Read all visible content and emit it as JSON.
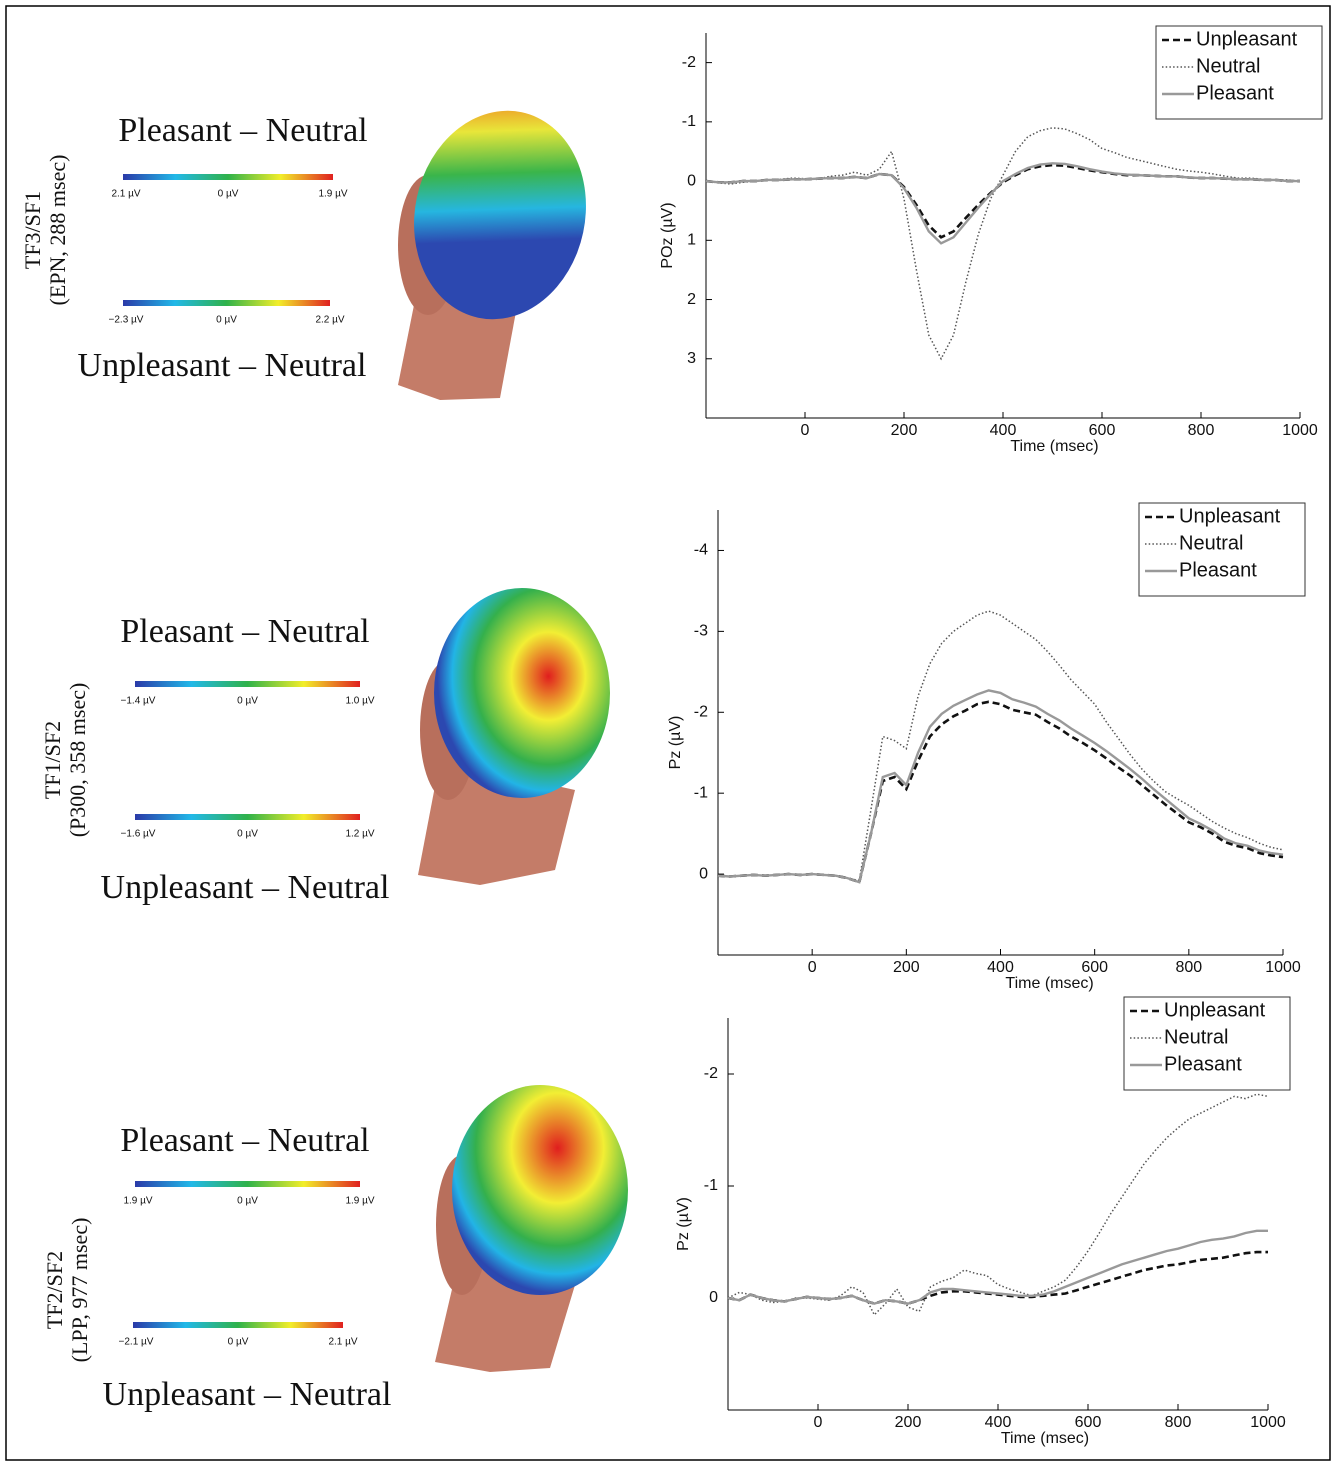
{
  "panels": [
    {
      "row_label": "TF3/SF1",
      "row_sublabel": "(EPN, 288 msec)",
      "pleasant": {
        "title": "Pleasant – Neutral",
        "scale": [
          "2.1 µV",
          "0 µV",
          "1.9 µV"
        ]
      },
      "unpleasant": {
        "title": "Unpleasant – Neutral",
        "scale": [
          "−2.3 µV",
          "0 µV",
          "2.2 µV"
        ]
      }
    },
    {
      "row_label": "TF1/SF2",
      "row_sublabel": "(P300, 358 msec)",
      "pleasant": {
        "title": "Pleasant – Neutral",
        "scale": [
          "−1.4 µV",
          "0 µV",
          "1.0 µV"
        ]
      },
      "unpleasant": {
        "title": "Unpleasant – Neutral",
        "scale": [
          "−1.6 µV",
          "0 µV",
          "1.2 µV"
        ]
      }
    },
    {
      "row_label": "TF2/SF2",
      "row_sublabel": "(LPP, 977 msec)",
      "pleasant": {
        "title": "Pleasant – Neutral",
        "scale": [
          "1.9 µV",
          "0 µV",
          "1.9 µV"
        ]
      },
      "unpleasant": {
        "title": "Unpleasant – Neutral",
        "scale": [
          "−2.1 µV",
          "0 µV",
          "2.1 µV"
        ]
      }
    }
  ],
  "chart_data": [
    {
      "type": "line",
      "xlabel": "Time (msec)",
      "ylabel": "POz (µV)",
      "legend": "upper right",
      "xlim": [
        -200,
        1000
      ],
      "xticks": [
        0,
        200,
        400,
        600,
        800,
        1000
      ],
      "ylim": [
        4,
        -2.5
      ],
      "yticks": [
        -2,
        -1,
        0,
        1,
        2,
        3
      ],
      "x": [
        -200,
        -175,
        -150,
        -125,
        -100,
        -75,
        -50,
        -25,
        0,
        25,
        50,
        75,
        100,
        125,
        150,
        175,
        200,
        225,
        250,
        275,
        300,
        325,
        350,
        375,
        400,
        425,
        450,
        475,
        500,
        525,
        550,
        575,
        600,
        625,
        650,
        675,
        700,
        725,
        750,
        775,
        800,
        825,
        850,
        875,
        900,
        925,
        950,
        975,
        1000
      ],
      "series": [
        {
          "name": "Unpleasant",
          "color": "#111111",
          "line_style": "dashed",
          "values": [
            0,
            0.02,
            0.02,
            0,
            0,
            -0.02,
            -0.02,
            -0.03,
            -0.03,
            -0.04,
            -0.05,
            -0.05,
            -0.07,
            -0.05,
            -0.12,
            -0.1,
            0.1,
            0.4,
            0.75,
            0.95,
            0.85,
            0.62,
            0.4,
            0.2,
            0.02,
            -0.1,
            -0.2,
            -0.25,
            -0.27,
            -0.26,
            -0.22,
            -0.18,
            -0.15,
            -0.12,
            -0.1,
            -0.1,
            -0.09,
            -0.08,
            -0.08,
            -0.06,
            -0.05,
            -0.05,
            -0.04,
            -0.03,
            -0.03,
            -0.02,
            -0.02,
            0,
            0
          ]
        },
        {
          "name": "Neutral",
          "color": "#555555",
          "line_style": "dotted",
          "values": [
            0,
            0.03,
            0.05,
            0.02,
            0,
            -0.02,
            -0.03,
            -0.05,
            -0.04,
            -0.03,
            -0.08,
            -0.1,
            -0.15,
            -0.1,
            -0.2,
            -0.5,
            0.3,
            1.5,
            2.6,
            3.0,
            2.6,
            1.7,
            0.9,
            0.3,
            -0.1,
            -0.5,
            -0.75,
            -0.85,
            -0.9,
            -0.88,
            -0.8,
            -0.7,
            -0.55,
            -0.48,
            -0.4,
            -0.35,
            -0.3,
            -0.25,
            -0.2,
            -0.17,
            -0.15,
            -0.12,
            -0.08,
            -0.05,
            -0.05,
            -0.03,
            -0.02,
            -0.02,
            0
          ]
        },
        {
          "name": "Pleasant",
          "color": "#999999",
          "line_style": "solid",
          "values": [
            0,
            0.02,
            0.02,
            0,
            0,
            -0.02,
            -0.02,
            -0.03,
            -0.03,
            -0.04,
            -0.05,
            -0.05,
            -0.07,
            -0.05,
            -0.12,
            -0.1,
            0.12,
            0.45,
            0.85,
            1.05,
            0.95,
            0.7,
            0.45,
            0.22,
            0,
            -0.12,
            -0.22,
            -0.28,
            -0.3,
            -0.29,
            -0.25,
            -0.2,
            -0.16,
            -0.13,
            -0.11,
            -0.1,
            -0.09,
            -0.08,
            -0.08,
            -0.06,
            -0.05,
            -0.05,
            -0.04,
            -0.03,
            -0.03,
            -0.02,
            -0.02,
            0,
            0
          ]
        }
      ]
    },
    {
      "type": "line",
      "xlabel": "Time (msec)",
      "ylabel": "Pz (µV)",
      "legend": "upper right",
      "xlim": [
        -200,
        1000
      ],
      "xticks": [
        0,
        200,
        400,
        600,
        800,
        1000
      ],
      "ylim": [
        1,
        -4.5
      ],
      "yticks": [
        -4,
        -3,
        -2,
        -1,
        0
      ],
      "x": [
        -200,
        -175,
        -150,
        -125,
        -100,
        -75,
        -50,
        -25,
        0,
        25,
        50,
        75,
        100,
        125,
        150,
        175,
        200,
        225,
        250,
        275,
        300,
        325,
        350,
        375,
        400,
        425,
        450,
        475,
        500,
        525,
        550,
        575,
        600,
        625,
        650,
        675,
        700,
        725,
        750,
        775,
        800,
        825,
        850,
        875,
        900,
        925,
        950,
        975,
        1000
      ],
      "series": [
        {
          "name": "Unpleasant",
          "color": "#111111",
          "line_style": "dashed",
          "values": [
            0.02,
            0.03,
            0.02,
            0.01,
            0.02,
            0.01,
            0,
            0.01,
            0,
            0.01,
            0.02,
            0.05,
            0.1,
            -0.5,
            -1.15,
            -1.2,
            -1.05,
            -1.4,
            -1.7,
            -1.85,
            -1.95,
            -2.02,
            -2.1,
            -2.13,
            -2.1,
            -2.03,
            -2.0,
            -1.97,
            -1.88,
            -1.8,
            -1.7,
            -1.62,
            -1.53,
            -1.43,
            -1.32,
            -1.22,
            -1.1,
            -0.98,
            -0.86,
            -0.75,
            -0.64,
            -0.58,
            -0.5,
            -0.4,
            -0.35,
            -0.32,
            -0.26,
            -0.23,
            -0.21
          ]
        },
        {
          "name": "Neutral",
          "color": "#555555",
          "line_style": "dotted",
          "values": [
            0.02,
            0.03,
            0.02,
            0.01,
            0.02,
            0.01,
            0,
            0.01,
            0,
            0.01,
            0.02,
            0.05,
            0.08,
            -0.8,
            -1.7,
            -1.65,
            -1.55,
            -2.2,
            -2.6,
            -2.85,
            -3.0,
            -3.1,
            -3.2,
            -3.25,
            -3.2,
            -3.1,
            -3.0,
            -2.9,
            -2.75,
            -2.58,
            -2.4,
            -2.25,
            -2.1,
            -1.88,
            -1.68,
            -1.48,
            -1.3,
            -1.15,
            -1.02,
            -0.93,
            -0.85,
            -0.75,
            -0.65,
            -0.57,
            -0.5,
            -0.45,
            -0.38,
            -0.33,
            -0.3
          ]
        },
        {
          "name": "Pleasant",
          "color": "#999999",
          "line_style": "solid",
          "values": [
            0.02,
            0.03,
            0.02,
            0.01,
            0.02,
            0.01,
            0,
            0.01,
            0,
            0.01,
            0.02,
            0.05,
            0.1,
            -0.5,
            -1.2,
            -1.25,
            -1.1,
            -1.5,
            -1.82,
            -1.98,
            -2.08,
            -2.15,
            -2.22,
            -2.27,
            -2.24,
            -2.16,
            -2.12,
            -2.07,
            -1.98,
            -1.9,
            -1.8,
            -1.71,
            -1.62,
            -1.52,
            -1.41,
            -1.3,
            -1.18,
            -1.05,
            -0.93,
            -0.81,
            -0.69,
            -0.62,
            -0.54,
            -0.44,
            -0.38,
            -0.35,
            -0.29,
            -0.26,
            -0.24
          ]
        }
      ]
    },
    {
      "type": "line",
      "xlabel": "Time (msec)",
      "ylabel": "Pz (µV)",
      "legend": "upper right",
      "xlim": [
        -200,
        1000
      ],
      "xticks": [
        0,
        200,
        400,
        600,
        800,
        1000
      ],
      "ylim": [
        1,
        -2.5
      ],
      "yticks": [
        -2,
        -1,
        0
      ],
      "x": [
        -200,
        -175,
        -150,
        -125,
        -100,
        -75,
        -50,
        -25,
        0,
        25,
        50,
        75,
        100,
        125,
        150,
        175,
        200,
        225,
        250,
        275,
        300,
        325,
        350,
        375,
        400,
        425,
        450,
        475,
        500,
        525,
        550,
        575,
        600,
        625,
        650,
        675,
        700,
        725,
        750,
        775,
        800,
        825,
        850,
        875,
        900,
        925,
        950,
        975,
        1000
      ],
      "series": [
        {
          "name": "Unpleasant",
          "color": "#111111",
          "line_style": "dashed",
          "values": [
            0,
            0.02,
            -0.03,
            0,
            0.02,
            0.03,
            0.01,
            -0.01,
            0,
            0.01,
            0,
            -0.02,
            0.02,
            0.05,
            0.02,
            0.03,
            0.05,
            0.02,
            -0.02,
            -0.05,
            -0.06,
            -0.06,
            -0.05,
            -0.04,
            -0.03,
            -0.02,
            -0.01,
            -0.01,
            -0.02,
            -0.03,
            -0.04,
            -0.07,
            -0.1,
            -0.13,
            -0.16,
            -0.19,
            -0.22,
            -0.25,
            -0.27,
            -0.29,
            -0.3,
            -0.32,
            -0.34,
            -0.35,
            -0.36,
            -0.38,
            -0.4,
            -0.41,
            -0.41
          ]
        },
        {
          "name": "Neutral",
          "color": "#555555",
          "line_style": "dotted",
          "values": [
            0,
            -0.05,
            -0.03,
            0.02,
            0.04,
            0.03,
            0,
            0,
            0.01,
            0.02,
            -0.02,
            -0.1,
            -0.05,
            0.15,
            0.05,
            -0.08,
            0.08,
            0.12,
            -0.1,
            -0.15,
            -0.18,
            -0.25,
            -0.22,
            -0.2,
            -0.12,
            -0.08,
            -0.05,
            -0.02,
            -0.06,
            -0.1,
            -0.16,
            -0.28,
            -0.42,
            -0.58,
            -0.75,
            -0.9,
            -1.05,
            -1.2,
            -1.32,
            -1.43,
            -1.52,
            -1.6,
            -1.65,
            -1.7,
            -1.75,
            -1.8,
            -1.78,
            -1.82,
            -1.8
          ]
        },
        {
          "name": "Pleasant",
          "color": "#999999",
          "line_style": "solid",
          "values": [
            0,
            0.02,
            -0.03,
            0,
            0.02,
            0.03,
            0.01,
            -0.01,
            0,
            0.01,
            0,
            -0.02,
            0.02,
            0.05,
            0.02,
            0.03,
            0.05,
            0.02,
            -0.05,
            -0.08,
            -0.08,
            -0.07,
            -0.06,
            -0.05,
            -0.04,
            -0.03,
            -0.02,
            -0.02,
            -0.03,
            -0.06,
            -0.1,
            -0.14,
            -0.18,
            -0.22,
            -0.26,
            -0.3,
            -0.33,
            -0.36,
            -0.39,
            -0.42,
            -0.44,
            -0.47,
            -0.5,
            -0.52,
            -0.53,
            -0.55,
            -0.58,
            -0.6,
            -0.6
          ]
        }
      ]
    }
  ]
}
